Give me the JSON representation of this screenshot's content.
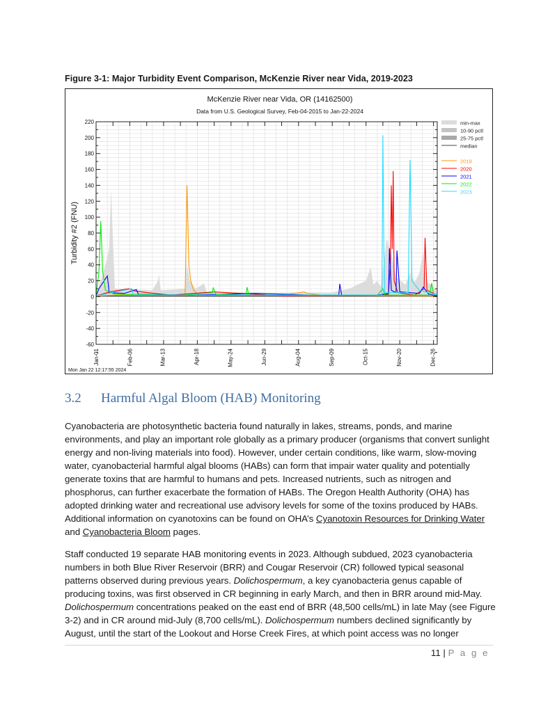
{
  "figure": {
    "caption": "Figure 3-1: Major Turbidity Event Comparison, McKenzie River near Vida, 2019-2023"
  },
  "chart_data": {
    "type": "line",
    "title": "McKenzie River near Vida, OR (14162500)",
    "subtitle": "Data from U.S. Geological Survey, Feb-04-2015 to Jan-22-2024",
    "ylabel": "Turbidity #2 (FNU)",
    "xlabel": "",
    "ylim": [
      -60,
      220
    ],
    "yticks": [
      220,
      200,
      180,
      160,
      140,
      120,
      100,
      80,
      60,
      40,
      20,
      0,
      -20,
      -40,
      -60
    ],
    "xlim_day_of_year": [
      0,
      364
    ],
    "xticks": [
      {
        "label": "Jan-01",
        "day": 0
      },
      {
        "label": "Feb-06",
        "day": 36
      },
      {
        "label": "Mar-13",
        "day": 71
      },
      {
        "label": "Apr-18",
        "day": 107
      },
      {
        "label": "May-24",
        "day": 143
      },
      {
        "label": "Jun-29",
        "day": 179
      },
      {
        "label": "Aug-04",
        "day": 215
      },
      {
        "label": "Sep-09",
        "day": 251
      },
      {
        "label": "Oct-15",
        "day": 287
      },
      {
        "label": "Nov-20",
        "day": 323
      },
      {
        "label": "Dec-26",
        "day": 359
      }
    ],
    "grid": true,
    "legend_position": "right",
    "timestamp": "Mon Jan 22 12:17:55 2024",
    "bands": [
      {
        "name": "min-max",
        "color": "#dcdcdc",
        "points": [
          [
            0,
            3
          ],
          [
            5,
            20
          ],
          [
            10,
            40
          ],
          [
            14,
            60
          ],
          [
            16,
            135
          ],
          [
            18,
            70
          ],
          [
            20,
            10
          ],
          [
            60,
            8
          ],
          [
            66,
            20
          ],
          [
            67,
            28
          ],
          [
            69,
            8
          ],
          [
            95,
            10
          ],
          [
            97,
            40
          ],
          [
            100,
            20
          ],
          [
            106,
            10
          ],
          [
            112,
            14
          ],
          [
            115,
            17
          ],
          [
            118,
            6
          ],
          [
            160,
            5
          ],
          [
            250,
            5
          ],
          [
            270,
            10
          ],
          [
            288,
            20
          ],
          [
            293,
            37
          ],
          [
            296,
            15
          ],
          [
            300,
            20
          ],
          [
            304,
            12
          ],
          [
            310,
            73
          ],
          [
            316,
            50
          ],
          [
            320,
            25
          ],
          [
            330,
            15
          ],
          [
            335,
            30
          ],
          [
            340,
            18
          ],
          [
            345,
            30
          ],
          [
            349,
            56
          ],
          [
            352,
            20
          ],
          [
            364,
            8
          ]
        ]
      },
      {
        "name": "10-90 pctl",
        "color": "#c4c4c4",
        "points": []
      },
      {
        "name": "25-75 pctl",
        "color": "#a8a8a8",
        "points": []
      }
    ],
    "series": [
      {
        "name": "median",
        "color": "#444444",
        "points": [
          [
            0,
            1
          ],
          [
            364,
            1
          ]
        ]
      },
      {
        "name": "2019",
        "color": "#ff9900",
        "points": [
          [
            0,
            1
          ],
          [
            20,
            2
          ],
          [
            80,
            2
          ],
          [
            95,
            3
          ],
          [
            97,
            140
          ],
          [
            98,
            90
          ],
          [
            99,
            40
          ],
          [
            101,
            20
          ],
          [
            104,
            8
          ],
          [
            110,
            2
          ],
          [
            200,
            2
          ],
          [
            222,
            6
          ],
          [
            226,
            4
          ],
          [
            240,
            2
          ],
          [
            364,
            1
          ]
        ]
      },
      {
        "name": "2020",
        "color": "#ff0000",
        "points": [
          [
            0,
            1
          ],
          [
            15,
            6
          ],
          [
            25,
            8
          ],
          [
            35,
            10
          ],
          [
            42,
            7
          ],
          [
            55,
            5
          ],
          [
            80,
            2
          ],
          [
            126,
            6
          ],
          [
            200,
            1
          ],
          [
            300,
            2
          ],
          [
            312,
            3
          ],
          [
            314,
            40
          ],
          [
            315,
            140
          ],
          [
            316,
            60
          ],
          [
            317,
            158
          ],
          [
            318,
            20
          ],
          [
            322,
            5
          ],
          [
            340,
            2
          ],
          [
            350,
            10
          ],
          [
            351,
            74
          ],
          [
            353,
            8
          ],
          [
            364,
            2
          ]
        ]
      },
      {
        "name": "2021",
        "color": "#0000ff",
        "points": [
          [
            0,
            1
          ],
          [
            3,
            10
          ],
          [
            12,
            26
          ],
          [
            14,
            5
          ],
          [
            30,
            4
          ],
          [
            43,
            9
          ],
          [
            45,
            3
          ],
          [
            100,
            2
          ],
          [
            170,
            4
          ],
          [
            230,
            2
          ],
          [
            259,
            2
          ],
          [
            260,
            16
          ],
          [
            262,
            2
          ],
          [
            300,
            2
          ],
          [
            312,
            4
          ],
          [
            313,
            61
          ],
          [
            315,
            8
          ],
          [
            320,
            5
          ],
          [
            321,
            58
          ],
          [
            324,
            6
          ],
          [
            345,
            4
          ],
          [
            349,
            12
          ],
          [
            355,
            3
          ],
          [
            364,
            1
          ]
        ]
      },
      {
        "name": "2022",
        "color": "#00ee00",
        "points": [
          [
            0,
            2
          ],
          [
            3,
            30
          ],
          [
            5,
            95
          ],
          [
            7,
            32
          ],
          [
            10,
            8
          ],
          [
            20,
            3
          ],
          [
            90,
            2
          ],
          [
            124,
            5
          ],
          [
            125,
            11
          ],
          [
            128,
            3
          ],
          [
            160,
            2
          ],
          [
            161,
            12
          ],
          [
            163,
            2
          ],
          [
            300,
            2
          ],
          [
            306,
            10
          ],
          [
            308,
            2
          ],
          [
            356,
            2
          ],
          [
            358,
            17
          ],
          [
            360,
            4
          ],
          [
            364,
            2
          ]
        ]
      },
      {
        "name": "2023",
        "color": "#22ddff",
        "points": [
          [
            0,
            1
          ],
          [
            38,
            10
          ],
          [
            40,
            2
          ],
          [
            130,
            2
          ],
          [
            240,
            2
          ],
          [
            305,
            2
          ],
          [
            306,
            203
          ],
          [
            307,
            60
          ],
          [
            308,
            5
          ],
          [
            333,
            5
          ],
          [
            335,
            172
          ],
          [
            336,
            100
          ],
          [
            337,
            20
          ],
          [
            340,
            15
          ],
          [
            345,
            8
          ],
          [
            364,
            2
          ]
        ]
      }
    ]
  },
  "section": {
    "number": "3.2",
    "title": "Harmful Algal Bloom (HAB) Monitoring"
  },
  "paragraph1": {
    "text_before": "Cyanobacteria are photosynthetic bacteria found naturally in lakes, streams, ponds, and marine environments, and play an important role globally as a primary producer (organisms that convert sunlight energy and non-living materials into food).  However, under certain conditions, like warm, slow-moving water, cyanobacterial harmful algal blooms (HABs) can form that impair water quality and potentially generate toxins that are harmful to humans and pets.  Increased nutrients, such as nitrogen and phosphorus, can further exacerbate the formation of HABs.  The Oregon Health Authority (OHA) has adopted drinking water and recreational use advisory levels for some of the toxins produced by HABs.  Additional information on cyanotoxins can be found on OHA’s ",
    "link1": "Cyanotoxin Resources for Drinking Water",
    "text_mid": " and ",
    "link2": "Cyanobacteria Bloom",
    "text_after": " pages."
  },
  "paragraph2": {
    "t1": "Staff conducted 19 separate HAB monitoring events in 2023.  Although subdued, 2023 cyanobacteria numbers in both Blue River Reservoir (BRR) and Cougar Reservoir (CR) followed typical seasonal patterns observed during previous years. ",
    "i1": "Dolichospermum",
    "t2": ", a key cyanobacteria genus capable of producing toxins, was first observed in CR beginning in early March, and then in BRR around mid-May. ",
    "i2": "Dolichospermum",
    "t3": " concentrations peaked on the east end of BRR (48,500 cells/mL) in late May (see Figure 3-2) and in CR around mid-July (8,700 cells/mL). ",
    "i3": "Dolichospermum",
    "t4": " numbers declined significantly by August, until the start of the Lookout and Horse Creek Fires, at which point access was no longer"
  },
  "footer": {
    "page_number": "11",
    "separator": "|",
    "page_label": "P a g e"
  }
}
